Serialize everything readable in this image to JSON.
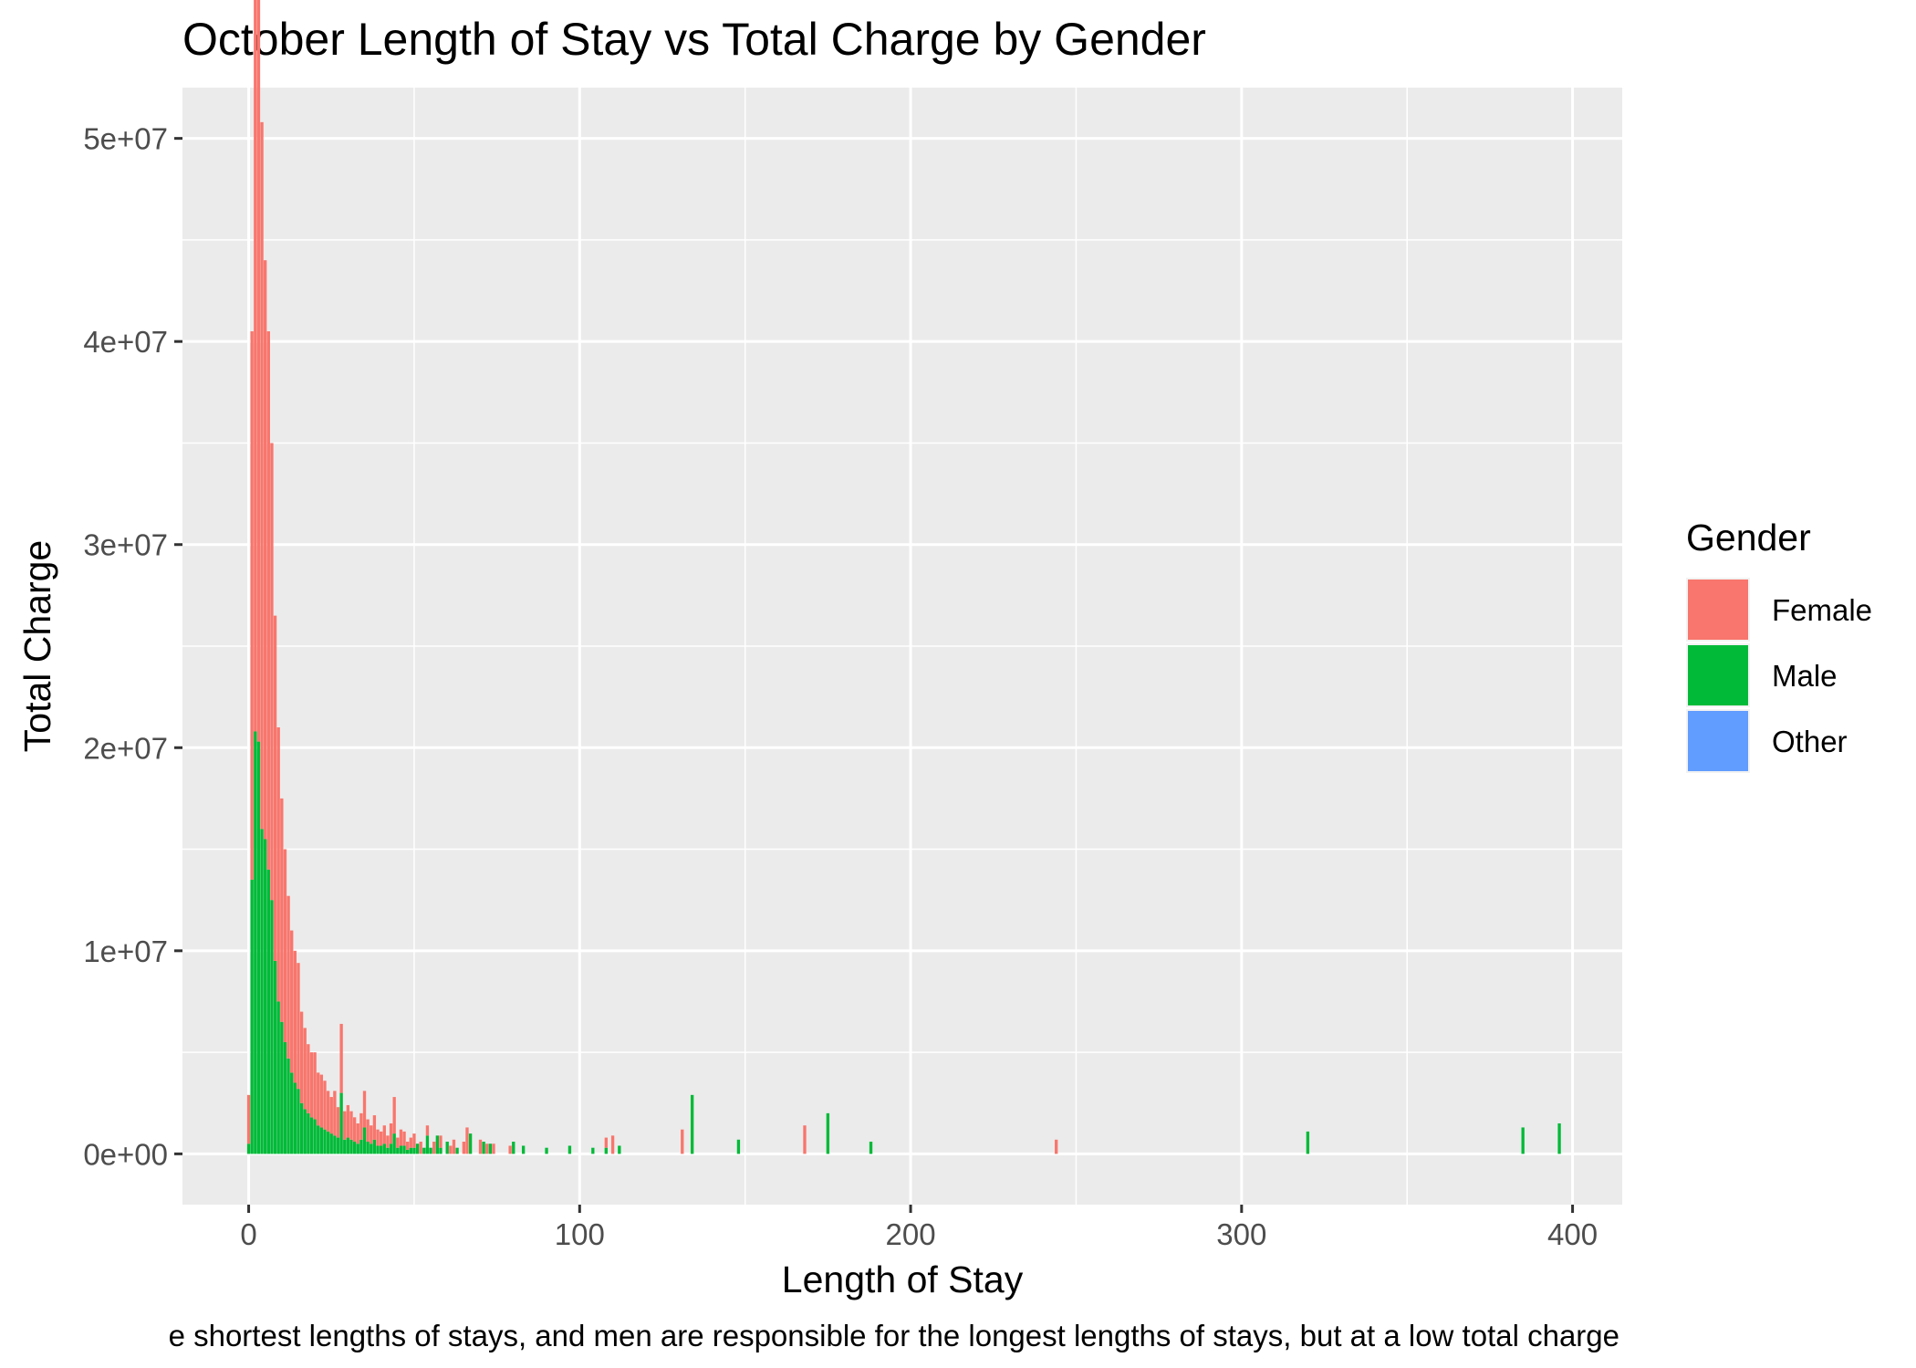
{
  "chart_data": {
    "type": "bar",
    "title": "October Length of Stay vs Total Charge by Gender",
    "xlabel": "Length of Stay",
    "ylabel": "Total Charge",
    "caption": "e shortest lengths of stays, and men are responsible for the longest lengths of stays, but at a low total charge",
    "xlim": [
      -20,
      415
    ],
    "ylim": [
      -2500000,
      52500000
    ],
    "x_ticks": [
      0,
      100,
      200,
      300,
      400
    ],
    "x_tick_labels": [
      "0",
      "100",
      "200",
      "300",
      "400"
    ],
    "y_ticks": [
      0,
      10000000,
      20000000,
      30000000,
      40000000,
      50000000
    ],
    "y_tick_labels": [
      "0e+00",
      "1e+07",
      "2e+07",
      "3e+07",
      "4e+07",
      "5e+07"
    ],
    "grid": true,
    "stacked": true,
    "legend": {
      "title": "Gender",
      "position": "right"
    },
    "series": [
      {
        "name": "Female",
        "color": "#F8766D",
        "points": [
          [
            0,
            2400000
          ],
          [
            1,
            27000000
          ],
          [
            2,
            49500000
          ],
          [
            3,
            49800000
          ],
          [
            4,
            34800000
          ],
          [
            5,
            28500000
          ],
          [
            6,
            26500000
          ],
          [
            7,
            22500000
          ],
          [
            8,
            17000000
          ],
          [
            9,
            13500000
          ],
          [
            10,
            11000000
          ],
          [
            11,
            9500000
          ],
          [
            12,
            8000000
          ],
          [
            13,
            7000000
          ],
          [
            14,
            6500000
          ],
          [
            15,
            6200000
          ],
          [
            16,
            4500000
          ],
          [
            17,
            4000000
          ],
          [
            18,
            3400000
          ],
          [
            19,
            3200000
          ],
          [
            20,
            3300000
          ],
          [
            21,
            2600000
          ],
          [
            22,
            2600000
          ],
          [
            23,
            2400000
          ],
          [
            24,
            2000000
          ],
          [
            25,
            1800000
          ],
          [
            26,
            2200000
          ],
          [
            27,
            1500000
          ],
          [
            28,
            3400000
          ],
          [
            29,
            1400000
          ],
          [
            30,
            1600000
          ],
          [
            31,
            1400000
          ],
          [
            32,
            1200000
          ],
          [
            33,
            1000000
          ],
          [
            34,
            1300000
          ],
          [
            35,
            1800000
          ],
          [
            36,
            1100000
          ],
          [
            37,
            900000
          ],
          [
            38,
            1200000
          ],
          [
            39,
            800000
          ],
          [
            40,
            700000
          ],
          [
            41,
            900000
          ],
          [
            42,
            600000
          ],
          [
            43,
            1000000
          ],
          [
            44,
            1800000
          ],
          [
            45,
            500000
          ],
          [
            46,
            800000
          ],
          [
            47,
            700000
          ],
          [
            48,
            400000
          ],
          [
            49,
            500000
          ],
          [
            50,
            700000
          ],
          [
            52,
            600000
          ],
          [
            54,
            500000
          ],
          [
            56,
            600000
          ],
          [
            58,
            600000
          ],
          [
            61,
            400000
          ],
          [
            62,
            700000
          ],
          [
            65,
            600000
          ],
          [
            66,
            1300000
          ],
          [
            70,
            700000
          ],
          [
            72,
            500000
          ],
          [
            74,
            500000
          ],
          [
            79,
            400000
          ],
          [
            108,
            500000
          ],
          [
            110,
            900000
          ],
          [
            131,
            1200000
          ],
          [
            168,
            1400000
          ],
          [
            244,
            700000
          ]
        ]
      },
      {
        "name": "Male",
        "color": "#00BA38",
        "points": [
          [
            0,
            500000
          ],
          [
            1,
            13500000
          ],
          [
            2,
            20800000
          ],
          [
            3,
            20300000
          ],
          [
            4,
            16000000
          ],
          [
            5,
            15500000
          ],
          [
            6,
            14000000
          ],
          [
            7,
            12500000
          ],
          [
            8,
            9500000
          ],
          [
            9,
            7500000
          ],
          [
            10,
            6500000
          ],
          [
            11,
            5500000
          ],
          [
            12,
            4700000
          ],
          [
            13,
            4000000
          ],
          [
            14,
            3500000
          ],
          [
            15,
            3200000
          ],
          [
            16,
            2500000
          ],
          [
            17,
            2200000
          ],
          [
            18,
            2000000
          ],
          [
            19,
            1800000
          ],
          [
            20,
            1700000
          ],
          [
            21,
            1400000
          ],
          [
            22,
            1300000
          ],
          [
            23,
            1200000
          ],
          [
            24,
            1100000
          ],
          [
            25,
            1000000
          ],
          [
            26,
            900000
          ],
          [
            27,
            800000
          ],
          [
            28,
            3000000
          ],
          [
            29,
            700000
          ],
          [
            30,
            800000
          ],
          [
            31,
            700000
          ],
          [
            32,
            600000
          ],
          [
            33,
            500000
          ],
          [
            34,
            700000
          ],
          [
            35,
            1300000
          ],
          [
            36,
            600000
          ],
          [
            37,
            500000
          ],
          [
            38,
            700000
          ],
          [
            39,
            400000
          ],
          [
            40,
            400000
          ],
          [
            41,
            500000
          ],
          [
            42,
            300000
          ],
          [
            43,
            500000
          ],
          [
            44,
            1000000
          ],
          [
            45,
            300000
          ],
          [
            46,
            400000
          ],
          [
            47,
            400000
          ],
          [
            48,
            200000
          ],
          [
            49,
            300000
          ],
          [
            50,
            300000
          ],
          [
            51,
            500000
          ],
          [
            53,
            300000
          ],
          [
            54,
            900000
          ],
          [
            55,
            300000
          ],
          [
            57,
            900000
          ],
          [
            58,
            300000
          ],
          [
            60,
            600000
          ],
          [
            63,
            300000
          ],
          [
            67,
            1000000
          ],
          [
            71,
            600000
          ],
          [
            73,
            500000
          ],
          [
            80,
            600000
          ],
          [
            83,
            400000
          ],
          [
            90,
            300000
          ],
          [
            97,
            400000
          ],
          [
            104,
            300000
          ],
          [
            108,
            300000
          ],
          [
            112,
            400000
          ],
          [
            134,
            2900000
          ],
          [
            148,
            700000
          ],
          [
            175,
            2000000
          ],
          [
            188,
            600000
          ],
          [
            320,
            1100000
          ],
          [
            385,
            1300000
          ],
          [
            396,
            1500000
          ]
        ]
      },
      {
        "name": "Other",
        "color": "#619CFF",
        "points": []
      }
    ]
  }
}
